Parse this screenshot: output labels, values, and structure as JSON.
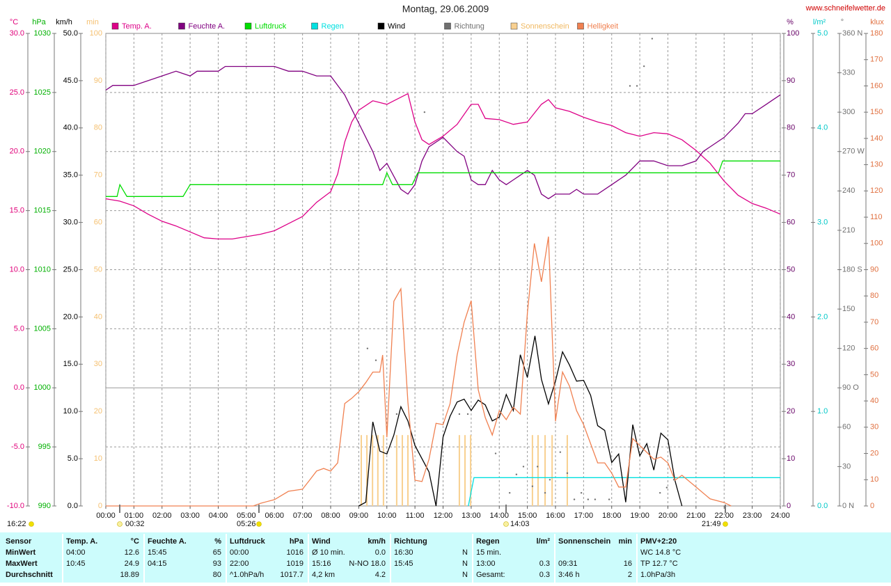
{
  "header": {
    "title": "Montag, 29.06.2009",
    "url": "www.schneifelwetter.de"
  },
  "chart_data": {
    "type": "line",
    "grid": true,
    "xlim": [
      0,
      24
    ],
    "xticks": [
      {
        "value": 0,
        "label": "00:00"
      },
      {
        "value": 1,
        "label": "01:00"
      },
      {
        "value": 2,
        "label": "02:00"
      },
      {
        "value": 3,
        "label": "03:00"
      },
      {
        "value": 4,
        "label": "04:00"
      },
      {
        "value": 5,
        "label": "05:00"
      },
      {
        "value": 6,
        "label": "06:00"
      },
      {
        "value": 7,
        "label": "07:00"
      },
      {
        "value": 8,
        "label": "08:00"
      },
      {
        "value": 9,
        "label": "09:00"
      },
      {
        "value": 10,
        "label": "10:00"
      },
      {
        "value": 11,
        "label": "11:00"
      },
      {
        "value": 12,
        "label": "12:00"
      },
      {
        "value": 13,
        "label": "13:00"
      },
      {
        "value": 14,
        "label": "14:00"
      },
      {
        "value": 15,
        "label": "15:00"
      },
      {
        "value": 16,
        "label": "16:00"
      },
      {
        "value": 17,
        "label": "17:00"
      },
      {
        "value": 18,
        "label": "18:00"
      },
      {
        "value": 19,
        "label": "19:00"
      },
      {
        "value": 20,
        "label": "20:00"
      },
      {
        "value": 21,
        "label": "21:00"
      },
      {
        "value": 22,
        "label": "22:00"
      },
      {
        "value": 23,
        "label": "23:00"
      },
      {
        "value": 24,
        "label": "24:00"
      }
    ],
    "axes": [
      {
        "name": "°C",
        "color": "#e0007a",
        "lim": [
          -10,
          30
        ],
        "ticks": [
          {
            "value": 30,
            "label": "30.0"
          },
          {
            "value": 25,
            "label": "25.0"
          },
          {
            "value": 20,
            "label": "20.0"
          },
          {
            "value": 15,
            "label": "15.0"
          },
          {
            "value": 10,
            "label": "10.0"
          },
          {
            "value": 5,
            "label": "5.0"
          },
          {
            "value": 0,
            "label": "0.0"
          },
          {
            "value": -5,
            "label": "-5.0"
          },
          {
            "value": -10,
            "label": "-10.0"
          }
        ]
      },
      {
        "name": "hPa",
        "color": "#00b000",
        "lim": [
          990,
          1030
        ],
        "ticks": [
          1030,
          1025,
          1020,
          1015,
          1010,
          1005,
          1000,
          995,
          990
        ]
      },
      {
        "name": "km/h",
        "color": "#000000",
        "lim": [
          0,
          50
        ],
        "ticks": [
          {
            "value": 50,
            "label": "50.0"
          },
          {
            "value": 45,
            "label": "45.0"
          },
          {
            "value": 40,
            "label": "40.0"
          },
          {
            "value": 35,
            "label": "35.0"
          },
          {
            "value": 30,
            "label": "30.0"
          },
          {
            "value": 25,
            "label": "25.0"
          },
          {
            "value": 20,
            "label": "20.0"
          },
          {
            "value": 15,
            "label": "15.0"
          },
          {
            "value": 10,
            "label": "10.0"
          },
          {
            "value": 5,
            "label": "5.0"
          },
          {
            "value": 0,
            "label": "0.0"
          }
        ]
      },
      {
        "name": "min",
        "color": "#f5c070",
        "lim": [
          0,
          100
        ],
        "ticks": [
          100,
          90,
          80,
          70,
          60,
          50,
          40,
          30,
          20,
          10,
          0
        ]
      },
      {
        "name": "%",
        "color": "#660066",
        "lim": [
          0,
          100
        ],
        "ticks": [
          100,
          90,
          80,
          70,
          60,
          50,
          40,
          30,
          20,
          10,
          0
        ]
      },
      {
        "name": "l/m²",
        "color": "#00c8c8",
        "lim": [
          0,
          5
        ],
        "ticks": [
          {
            "value": 5,
            "label": "5.0"
          },
          {
            "value": 4,
            "label": "4.0"
          },
          {
            "value": 3,
            "label": "3.0"
          },
          {
            "value": 2,
            "label": "2.0"
          },
          {
            "value": 1,
            "label": "1.0"
          },
          {
            "value": 0,
            "label": "0.0"
          }
        ]
      },
      {
        "name": "°",
        "color": "#707070",
        "lim": [
          0,
          360
        ],
        "ticks": [
          {
            "value": 360,
            "label": "360 N"
          },
          330,
          300,
          {
            "value": 270,
            "label": "270 W"
          },
          240,
          210,
          {
            "value": 180,
            "label": "180 S"
          },
          150,
          120,
          {
            "value": 90,
            "label": "90 O"
          },
          60,
          30,
          {
            "value": 0,
            "label": "0 N"
          }
        ]
      },
      {
        "name": "klux",
        "color": "#e07040",
        "lim": [
          0,
          180
        ],
        "ticks": [
          180,
          170,
          160,
          150,
          140,
          130,
          120,
          110,
          100,
          90,
          80,
          70,
          60,
          50,
          40,
          30,
          20,
          10,
          0
        ]
      }
    ],
    "series": [
      {
        "name": "Temp. A.",
        "color": "#dd0088",
        "axis": 0,
        "type": "line",
        "x": [
          0,
          0.5,
          1,
          1.5,
          2,
          2.5,
          3,
          3.5,
          4,
          4.5,
          5,
          5.5,
          6,
          6.5,
          7,
          7.5,
          8,
          8.25,
          8.5,
          8.75,
          9,
          9.5,
          10,
          10.25,
          10.75,
          11,
          11.25,
          11.5,
          12,
          12.5,
          13,
          13.25,
          13.5,
          14,
          14.5,
          15,
          15.5,
          15.75,
          16,
          16.5,
          17,
          17.5,
          18,
          18.5,
          19,
          19.5,
          20,
          20.5,
          21,
          21.5,
          22,
          22.5,
          23,
          23.5,
          24
        ],
        "values": [
          16.0,
          15.8,
          15.4,
          14.7,
          14.1,
          13.7,
          13.2,
          12.7,
          12.6,
          12.6,
          12.8,
          13.0,
          13.3,
          13.9,
          14.5,
          15.7,
          16.6,
          18.1,
          20.8,
          22.5,
          23.5,
          24.3,
          24.0,
          24.3,
          24.9,
          22.5,
          21.0,
          20.6,
          21.3,
          22.3,
          24.0,
          24.0,
          22.8,
          22.7,
          22.3,
          22.5,
          24.0,
          24.4,
          23.7,
          23.4,
          22.9,
          22.5,
          22.2,
          21.6,
          21.3,
          21.6,
          21.5,
          21.0,
          20.1,
          19.0,
          17.5,
          16.3,
          15.6,
          15.2,
          14.7
        ]
      },
      {
        "name": "Feuchte A.",
        "color": "#800080",
        "axis": 4,
        "type": "line",
        "x": [
          0,
          0.25,
          1,
          2,
          2.5,
          3,
          3.25,
          4,
          4.25,
          5,
          6,
          6.5,
          7,
          7.5,
          8,
          8.5,
          9,
          9.5,
          9.75,
          10,
          10.5,
          10.75,
          11,
          11.25,
          11.5,
          12,
          12.5,
          12.75,
          13,
          13.25,
          13.5,
          13.75,
          14,
          14.25,
          14.5,
          15,
          15.25,
          15.5,
          15.75,
          16,
          16.5,
          16.75,
          17,
          17.5,
          18,
          18.5,
          19,
          19.5,
          20,
          20.5,
          21,
          21.25,
          21.5,
          22,
          22.5,
          22.75,
          23,
          23.5,
          23.75,
          24
        ],
        "values": [
          88,
          89,
          89,
          91,
          92,
          91,
          92,
          92,
          93,
          93,
          93,
          92,
          92,
          91,
          91,
          87,
          81,
          75,
          71,
          72.5,
          67,
          66,
          68,
          73,
          76,
          78,
          75,
          74,
          69,
          68,
          68,
          71,
          69,
          68,
          69,
          71,
          70,
          66,
          65,
          66,
          66,
          67,
          66,
          66,
          68,
          70,
          73,
          73,
          72,
          72,
          73,
          75,
          76,
          78,
          81,
          83,
          83,
          85,
          86,
          87
        ]
      },
      {
        "name": "Luftdruck",
        "color": "#00dd00",
        "axis": 1,
        "type": "line",
        "x": [
          0,
          0.4,
          0.5,
          0.75,
          2.75,
          3,
          9.85,
          10,
          10.2,
          10.9,
          11.1,
          21.8,
          21.95,
          24
        ],
        "values": [
          1016.2,
          1016.2,
          1017.2,
          1016.2,
          1016.2,
          1017.2,
          1017.2,
          1018.2,
          1017.2,
          1017.2,
          1018.2,
          1018.2,
          1019.2,
          1019.2
        ]
      },
      {
        "name": "Regen",
        "color": "#00e0e0",
        "axis": 5,
        "type": "line",
        "x": [
          12.9,
          13.1,
          24
        ],
        "values": [
          0,
          0.3,
          0.3
        ]
      },
      {
        "name": "Wind",
        "color": "#000000",
        "axis": 2,
        "type": "line",
        "x": [
          9,
          9.25,
          9.5,
          9.75,
          10,
          10.25,
          10.5,
          10.75,
          11,
          11.5,
          11.75,
          12,
          12.25,
          12.5,
          12.75,
          13,
          13.25,
          13.5,
          13.75,
          14,
          14.25,
          14.5,
          14.75,
          15,
          15.27,
          15.5,
          15.75,
          16,
          16.25,
          16.5,
          16.75,
          17,
          17.25,
          17.5,
          17.75,
          18,
          18.25,
          18.5,
          18.75,
          19,
          19.25,
          19.5,
          19.75,
          20,
          20.25,
          20.5
        ],
        "values": [
          0,
          0.4,
          8.9,
          5.8,
          5.5,
          7.5,
          10.5,
          9,
          6.4,
          3.6,
          0,
          7.3,
          9.5,
          11,
          11.3,
          10.1,
          11.2,
          10.7,
          9,
          9.4,
          11.8,
          10.1,
          16,
          13.6,
          18.0,
          13.4,
          10.8,
          13.2,
          16.3,
          14.9,
          13.2,
          13.3,
          11.7,
          8.5,
          8,
          4.6,
          5.5,
          0.4,
          8.6,
          5.3,
          6.6,
          3.8,
          7.7,
          7,
          2.7,
          0
        ]
      },
      {
        "name": "Richtung",
        "color": "#707070",
        "axis": 6,
        "type": "scatter",
        "x": [
          9.31,
          9.61,
          10.35,
          11.34,
          12.58,
          12.88,
          13.87,
          14.37,
          14.61,
          14.86,
          15.18,
          15.36,
          15.63,
          15.8,
          16.17,
          16.42,
          16.67,
          16.92,
          17.16,
          17.41,
          17.91,
          18.65,
          18.9,
          19.15,
          19.44,
          19.72,
          19.96,
          20.21
        ],
        "values": [
          120,
          111,
          70,
          300,
          70,
          70,
          40,
          10,
          24,
          30,
          15,
          30,
          10,
          20,
          41,
          25,
          5,
          10,
          5,
          5,
          5,
          320,
          320,
          335,
          356,
          10,
          14,
          20
        ]
      },
      {
        "name": "Sonnenschein",
        "color": "#f8d090",
        "axis": 3,
        "type": "bar",
        "x": [
          9.09,
          9.29,
          9.49,
          9.68,
          9.88,
          10.35,
          10.55,
          10.75,
          12.58,
          12.78,
          12.98,
          15.18,
          15.38,
          15.63,
          15.88,
          16.42
        ],
        "values": [
          15,
          15,
          15,
          15,
          15,
          15,
          15,
          15,
          15,
          15,
          15,
          15,
          15,
          15,
          15,
          15
        ]
      },
      {
        "name": "Helligkeit",
        "color": "#f08050",
        "axis": 7,
        "type": "line",
        "x": [
          0,
          5.25,
          5.5,
          6,
          6.5,
          7,
          7.25,
          7.5,
          7.75,
          8,
          8.25,
          8.5,
          8.75,
          9,
          9.25,
          9.5,
          9.75,
          9.85,
          10,
          10.25,
          10.5,
          10.75,
          11,
          11.25,
          11.5,
          11.75,
          12,
          12.25,
          12.5,
          12.75,
          13,
          13.25,
          13.5,
          13.75,
          14,
          14.25,
          14.5,
          14.75,
          15,
          15.25,
          15.5,
          15.75,
          16,
          16.25,
          16.5,
          16.75,
          17,
          17.5,
          17.75,
          18,
          18.25,
          18.5,
          18.75,
          19,
          19.25,
          19.5,
          19.75,
          20,
          20.25,
          20.5,
          21,
          21.5,
          22,
          22.25
        ],
        "values": [
          0,
          0,
          1,
          2.4,
          5.6,
          6.4,
          9.8,
          13.3,
          14.3,
          13.3,
          16.4,
          39,
          41,
          43.5,
          47,
          51,
          51,
          57.5,
          26.2,
          78,
          82.7,
          39.5,
          9.8,
          9.3,
          17.8,
          31.5,
          31,
          39,
          57.5,
          70,
          78.2,
          44.3,
          33.7,
          27,
          36.3,
          32.9,
          37.6,
          35,
          73.4,
          100,
          85.4,
          102.6,
          32.3,
          51,
          45.6,
          36.3,
          31,
          16.4,
          16.4,
          12.5,
          7.2,
          7.2,
          25.7,
          23,
          20.4,
          17.8,
          18.6,
          16.4,
          9.8,
          11.7,
          7.2,
          2.7,
          1.3,
          0
        ]
      }
    ],
    "annotations": [
      "16:22",
      "00:32",
      "05:26",
      "14:03",
      "21:49"
    ]
  },
  "table": {
    "header": [
      {
        "left": "Sensor"
      },
      {
        "left": "Temp. A.",
        "right": "°C"
      },
      {
        "left": "Feuchte A.",
        "right": "%"
      },
      {
        "left": "Luftdruck",
        "right": "hPa"
      },
      {
        "left": "Wind",
        "right": "km/h"
      },
      {
        "left": "Richtung"
      },
      {
        "left": "Regen",
        "right": "l/m²"
      },
      {
        "left": "Sonnenschein",
        "right": "min"
      },
      {
        "left": "PMV+2:20"
      }
    ],
    "rows": [
      [
        {
          "left": "MinWert"
        },
        {
          "left": "04:00",
          "right": "12.6"
        },
        {
          "left": "15:45",
          "right": "65"
        },
        {
          "left": "00:00",
          "right": "1016"
        },
        {
          "left": "Ø 10 min.",
          "right": "0.0"
        },
        {
          "left": "16:30",
          "right": "N"
        },
        {
          "left": "15 min."
        },
        {},
        {
          "left": "WC 14.8 °C"
        }
      ],
      [
        {
          "left": "MaxWert"
        },
        {
          "left": "10:45",
          "right": "24.9"
        },
        {
          "left": "04:15",
          "right": "93"
        },
        {
          "left": "22:00",
          "right": "1019"
        },
        {
          "left": "15:16",
          "right": "N-NO 18.0"
        },
        {
          "left": "15:45",
          "right": "N"
        },
        {
          "left": "13:00",
          "right": "0.3"
        },
        {
          "left": "09:31",
          "right": "16"
        },
        {
          "left": "TP 12.7 °C"
        }
      ],
      [
        {
          "left": "Durchschnitt"
        },
        {
          "right": "18.89"
        },
        {
          "right": "80"
        },
        {
          "left": "^1.0hPa/h",
          "right": "1017.7"
        },
        {
          "left": "4,2 km",
          "right": "4.2"
        },
        {
          "right": "N"
        },
        {
          "left": "Gesamt:",
          "right": "0.3"
        },
        {
          "left": "3:46 h",
          "right": "2"
        },
        {
          "left": "1.0hPa/3h"
        }
      ]
    ]
  }
}
